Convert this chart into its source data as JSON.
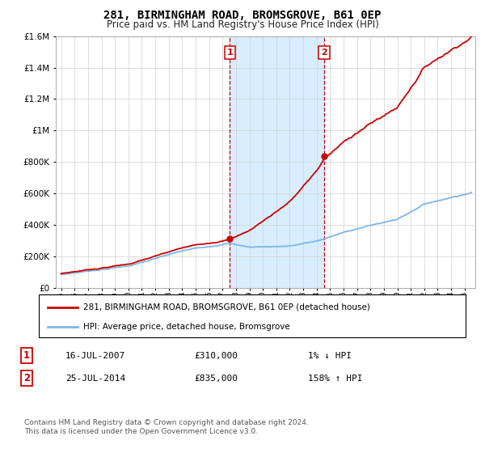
{
  "title": "281, BIRMINGHAM ROAD, BROMSGROVE, B61 0EP",
  "subtitle": "Price paid vs. HM Land Registry's House Price Index (HPI)",
  "legend_line1": "281, BIRMINGHAM ROAD, BROMSGROVE, B61 0EP (detached house)",
  "legend_line2": "HPI: Average price, detached house, Bromsgrove",
  "transaction1_date": "16-JUL-2007",
  "transaction1_price": "£310,000",
  "transaction1_hpi": "1% ↓ HPI",
  "transaction2_date": "25-JUL-2014",
  "transaction2_price": "£835,000",
  "transaction2_hpi": "158% ↑ HPI",
  "footnote": "Contains HM Land Registry data © Crown copyright and database right 2024.\nThis data is licensed under the Open Government Licence v3.0.",
  "purchase1_year": 2007.54,
  "purchase1_price": 310000,
  "purchase2_year": 2014.56,
  "purchase2_price": 835000,
  "hpi_color": "#7EB6E8",
  "price_color": "#CC0000",
  "vline_color": "#CC0000",
  "shade_color": "#D8EEFF",
  "ylim_max": 1600000,
  "ylim_min": 0,
  "xmin": 1995,
  "xmax": 2025
}
